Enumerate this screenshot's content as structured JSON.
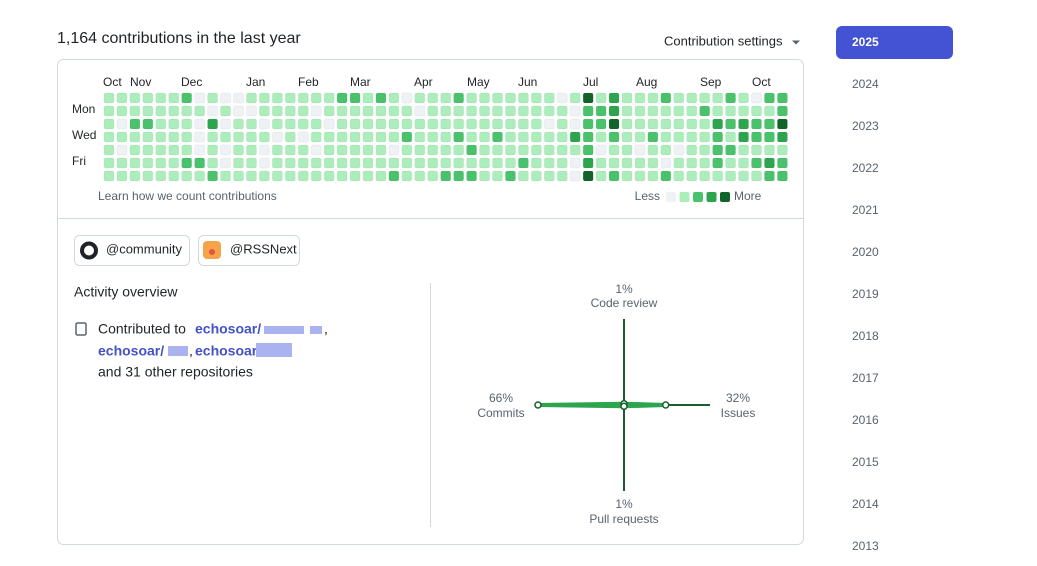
{
  "header": {
    "title": "1,164 contributions in the last year",
    "settings": "Contribution settings"
  },
  "calendar": {
    "months": [
      "Oct",
      "Nov",
      "Dec",
      "Jan",
      "Feb",
      "Mar",
      "Apr",
      "May",
      "Jun",
      "Jul",
      "Aug",
      "Sep",
      "Oct"
    ],
    "days": [
      "Mon",
      "Wed",
      "Fri"
    ],
    "levels": [
      [
        1,
        1,
        1,
        1,
        1,
        1,
        2,
        0,
        1,
        0,
        0,
        1,
        1,
        1,
        1,
        1,
        1,
        1,
        2,
        2,
        1,
        2,
        1,
        0,
        1,
        1,
        1,
        2,
        1,
        1,
        1,
        1,
        1,
        1,
        1,
        0,
        1,
        4,
        1,
        3,
        1,
        1,
        1,
        2,
        1,
        1,
        1,
        1,
        2,
        1,
        0,
        2,
        2
      ],
      [
        1,
        1,
        1,
        1,
        1,
        1,
        1,
        1,
        0,
        1,
        0,
        0,
        1,
        1,
        1,
        1,
        0,
        1,
        1,
        1,
        1,
        1,
        1,
        1,
        0,
        1,
        1,
        1,
        1,
        1,
        1,
        1,
        1,
        1,
        1,
        1,
        0,
        2,
        2,
        3,
        1,
        1,
        1,
        1,
        1,
        1,
        2,
        1,
        1,
        1,
        1,
        1,
        2
      ],
      [
        1,
        0,
        2,
        2,
        1,
        1,
        1,
        0,
        3,
        0,
        1,
        1,
        0,
        1,
        1,
        1,
        1,
        0,
        1,
        1,
        1,
        1,
        1,
        1,
        1,
        1,
        1,
        1,
        1,
        1,
        1,
        1,
        1,
        1,
        0,
        1,
        0,
        2,
        2,
        4,
        1,
        1,
        1,
        1,
        1,
        1,
        1,
        3,
        2,
        3,
        2,
        2,
        4
      ],
      [
        1,
        1,
        1,
        1,
        1,
        1,
        1,
        0,
        1,
        1,
        1,
        1,
        1,
        0,
        1,
        0,
        1,
        1,
        1,
        1,
        1,
        1,
        1,
        2,
        1,
        1,
        1,
        2,
        1,
        1,
        2,
        1,
        1,
        1,
        1,
        1,
        3,
        2,
        1,
        2,
        1,
        1,
        2,
        1,
        1,
        1,
        1,
        2,
        1,
        3,
        2,
        2,
        3
      ],
      [
        1,
        0,
        1,
        1,
        1,
        1,
        1,
        0,
        1,
        0,
        1,
        1,
        0,
        1,
        1,
        1,
        0,
        1,
        1,
        1,
        1,
        1,
        0,
        1,
        1,
        1,
        1,
        1,
        2,
        1,
        1,
        1,
        1,
        1,
        1,
        1,
        1,
        2,
        0,
        1,
        1,
        0,
        1,
        1,
        0,
        1,
        1,
        2,
        2,
        1,
        1,
        1,
        1
      ],
      [
        1,
        1,
        1,
        1,
        1,
        1,
        2,
        2,
        1,
        0,
        1,
        1,
        0,
        1,
        1,
        1,
        1,
        1,
        1,
        1,
        1,
        1,
        1,
        1,
        1,
        1,
        1,
        1,
        1,
        1,
        1,
        1,
        2,
        1,
        1,
        1,
        0,
        3,
        1,
        1,
        1,
        1,
        1,
        0,
        1,
        1,
        1,
        2,
        1,
        1,
        2,
        3,
        2
      ],
      [
        1,
        1,
        1,
        1,
        1,
        1,
        1,
        1,
        2,
        1,
        1,
        1,
        1,
        1,
        1,
        1,
        1,
        1,
        1,
        1,
        1,
        1,
        2,
        1,
        1,
        1,
        2,
        2,
        2,
        1,
        1,
        2,
        1,
        1,
        1,
        1,
        0,
        4,
        1,
        2,
        1,
        1,
        1,
        2,
        1,
        1,
        1,
        1,
        1,
        1,
        1,
        2,
        2
      ]
    ],
    "learn": "Learn how we count contributions",
    "less": "Less",
    "more": "More",
    "legend_levels": [
      0,
      1,
      2,
      3,
      4
    ]
  },
  "orgs": [
    "@community",
    "@RSSNext"
  ],
  "activity": {
    "title": "Activity overview",
    "prefix": "Contributed to",
    "repos": [
      "echosoar/",
      "echosoar/",
      "echosoar"
    ],
    "others": "and 31 other repositories",
    "radar": {
      "axes": [
        "Code review",
        "Issues",
        "Pull requests",
        "Commits"
      ],
      "values": [
        1,
        32,
        1,
        66
      ],
      "value_labels": [
        "1%",
        "32%",
        "1%",
        "66%"
      ]
    }
  },
  "years": [
    "2025",
    "2024",
    "2023",
    "2022",
    "2021",
    "2020",
    "2019",
    "2018",
    "2017",
    "2016",
    "2015",
    "2014",
    "2013"
  ],
  "selected_year": 0
}
